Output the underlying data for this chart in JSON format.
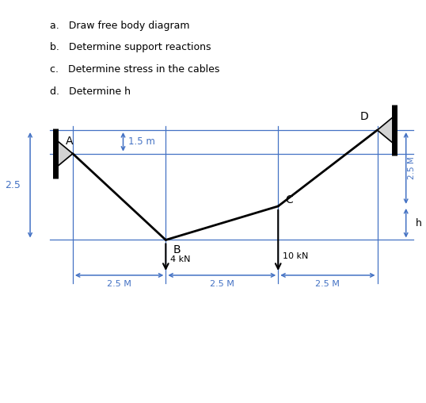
{
  "title_lines": [
    "a.   Draw free body diagram",
    "b.   Determine support reactions",
    "c.   Determine stress in the cables",
    "d.   Determine h"
  ],
  "bg_color": "#ffffff",
  "line_color": "#000000",
  "dim_color": "#4472C4",
  "text_color": "#000000",
  "A": [
    1.0,
    3.2
  ],
  "B": [
    2.2,
    2.2
  ],
  "C": [
    3.7,
    2.55
  ],
  "D": [
    5.0,
    3.55
  ],
  "load_B_label": "4 kN",
  "load_C_label": "10 kN",
  "dim_25_label": "2.5 M",
  "dim_15_label": "1.5 m",
  "dim_25M_right": "2.5 M",
  "dim_h_label": "h",
  "dim_25_left": "2.5"
}
